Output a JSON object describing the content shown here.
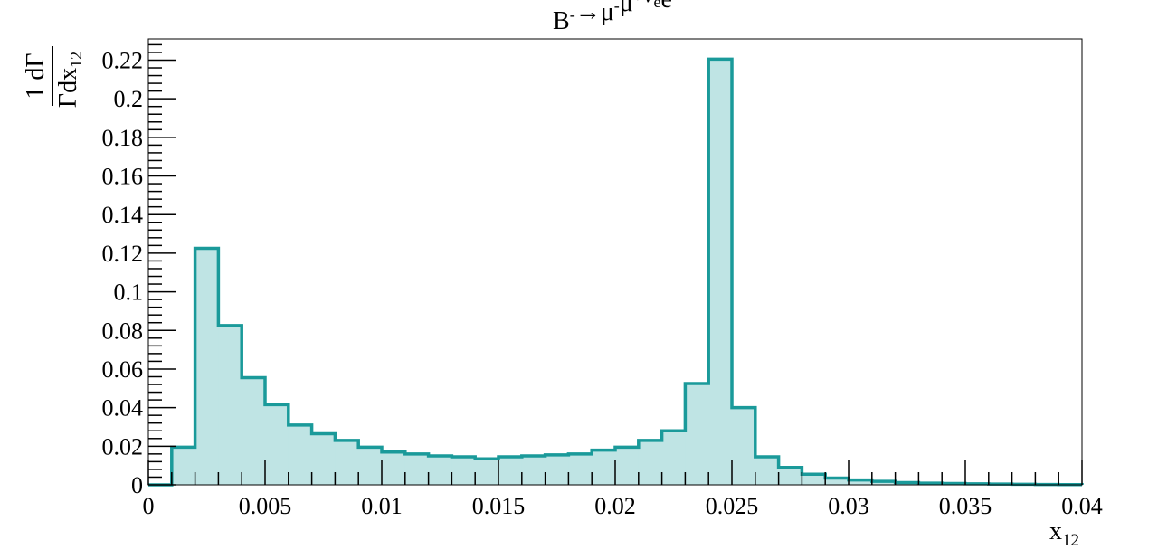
{
  "chart_data": {
    "type": "bar",
    "histogram": true,
    "title_parts": [
      {
        "t": "B",
        "sup": "-"
      },
      {
        "t": "→"
      },
      {
        "t": "μ",
        "sup": "-"
      },
      {
        "t": "μ",
        "sup": "+"
      },
      {
        "t": "ν",
        "overline": true,
        "sub": "e"
      },
      {
        "t": "e",
        "sup": "-"
      }
    ],
    "xlabel": {
      "main": "x",
      "sub": "12"
    },
    "ylabel": {
      "numerator": "1 dΓ",
      "denominator": "Γdx",
      "denominator_sub": "12"
    },
    "xlim": [
      0,
      0.04
    ],
    "ylim": [
      0,
      0.231
    ],
    "x_ticks": [
      "0",
      "0.005",
      "0.01",
      "0.015",
      "0.02",
      "0.025",
      "0.03",
      "0.035",
      "0.04"
    ],
    "y_ticks": [
      "0",
      "0.02",
      "0.04",
      "0.06",
      "0.08",
      "0.1",
      "0.12",
      "0.14",
      "0.16",
      "0.18",
      "0.2",
      "0.22"
    ],
    "bin_width": 0.001,
    "bin_low_edges": [
      0,
      0.001,
      0.002,
      0.003,
      0.004,
      0.005,
      0.006,
      0.007,
      0.008,
      0.009,
      0.01,
      0.011,
      0.012,
      0.013,
      0.014,
      0.015,
      0.016,
      0.017,
      0.018,
      0.019,
      0.02,
      0.021,
      0.022,
      0.023,
      0.024,
      0.025,
      0.026,
      0.027,
      0.028,
      0.029,
      0.03,
      0.031,
      0.032,
      0.033,
      0.034,
      0.035,
      0.036,
      0.037,
      0.038,
      0.039
    ],
    "values": [
      0,
      0.0195,
      0.1225,
      0.0825,
      0.0555,
      0.0415,
      0.031,
      0.0265,
      0.023,
      0.0195,
      0.017,
      0.016,
      0.015,
      0.0145,
      0.0135,
      0.0145,
      0.015,
      0.0155,
      0.016,
      0.018,
      0.0195,
      0.023,
      0.028,
      0.0525,
      0.2205,
      0.04,
      0.0145,
      0.009,
      0.0055,
      0.0035,
      0.0025,
      0.0018,
      0.0012,
      0.0009,
      0.0007,
      0.0005,
      0.0004,
      0.0003,
      0.0002,
      0.0001
    ],
    "line_color": "#1a9a9a",
    "fill_color": "#bfe4e4",
    "grid": false,
    "legend": "none"
  }
}
